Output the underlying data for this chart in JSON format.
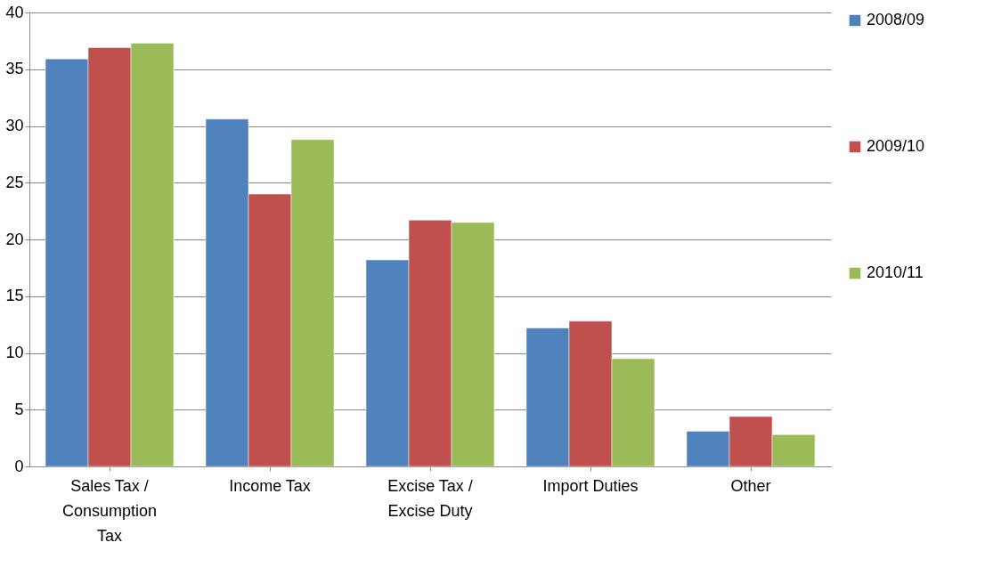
{
  "chart_data": {
    "type": "bar",
    "categories": [
      "Sales Tax /\nConsumption\nTax",
      "Income Tax",
      "Excise Tax /\nExcise Duty",
      "Import Duties",
      "Other"
    ],
    "series": [
      {
        "name": "2008/09",
        "color": "#4f81bd",
        "values": [
          35.9,
          30.6,
          18.2,
          12.2,
          3.1
        ]
      },
      {
        "name": "2009/10",
        "color": "#c0504d",
        "values": [
          36.9,
          24.0,
          21.7,
          12.8,
          4.4
        ]
      },
      {
        "name": "2010/11",
        "color": "#9bbb59",
        "values": [
          37.3,
          28.8,
          21.5,
          9.5,
          2.8
        ]
      }
    ],
    "ylim": [
      0,
      40
    ],
    "yticks": [
      0,
      5,
      10,
      15,
      20,
      25,
      30,
      35,
      40
    ],
    "grid": "y",
    "legend": "right"
  }
}
